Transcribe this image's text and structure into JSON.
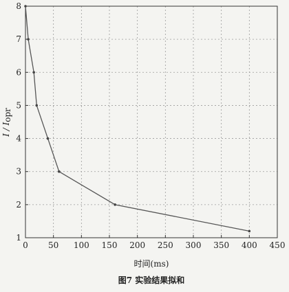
{
  "chart_data": {
    "type": "line",
    "title": "",
    "xlabel": "时间(ms)",
    "ylabel": "I / Iopr",
    "ylabel_main": "I / I",
    "ylabel_sub": "opr",
    "caption": "图7  实验结果拟和",
    "xlim": [
      0,
      450
    ],
    "ylim": [
      1,
      8
    ],
    "xticks": [
      0,
      50,
      100,
      150,
      200,
      250,
      300,
      350,
      400,
      450
    ],
    "yticks": [
      1,
      2,
      3,
      4,
      5,
      6,
      7,
      8
    ],
    "grid": true,
    "series": [
      {
        "x": [
          0,
          5,
          15,
          20,
          40,
          60,
          160,
          400
        ],
        "y": [
          8,
          7,
          6,
          5,
          4,
          3,
          2,
          1.2
        ]
      }
    ]
  }
}
